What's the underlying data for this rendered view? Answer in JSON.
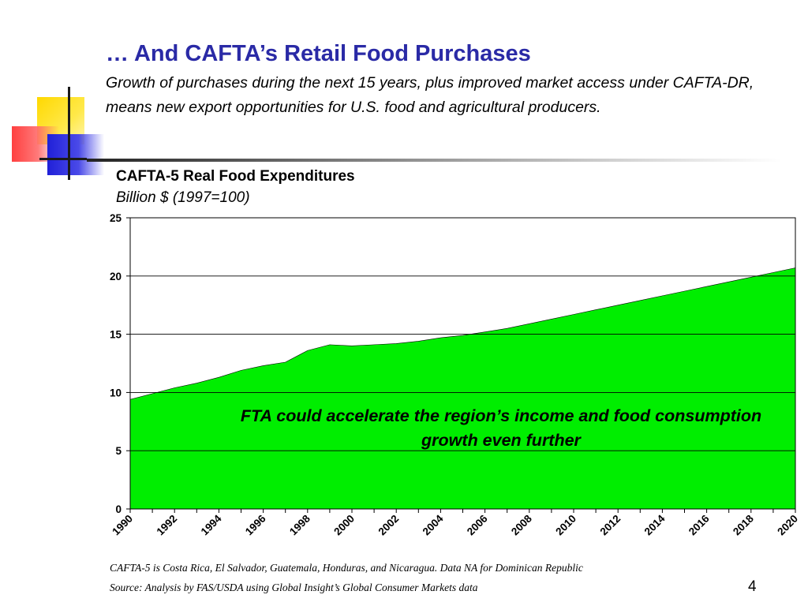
{
  "slide": {
    "title": "… And CAFTA’s Retail Food Purchases",
    "subtitle": "Growth of purchases during the next 15 years, plus improved market access under CAFTA-DR, means new export opportunities for U.S. food and agricultural producers.",
    "footnote_1": "CAFTA-5 is Costa Rica, El Salvador, Guatemala, Honduras, and Nicaragua.  Data NA for Dominican Republic",
    "footnote_2": "Source:  Analysis by FAS/USDA using Global Insight’s Global Consumer Markets data",
    "page_number": "4",
    "accent_colors": {
      "title": "#2a2aa6",
      "yellow": "#ffd800",
      "red": "#ff2a2a",
      "blue": "#2020d8"
    }
  },
  "chart_data": {
    "type": "area",
    "title": "CAFTA-5 Real Food Expenditures",
    "ylabel": "Billion $ (1997=100)",
    "xlabel": "",
    "x": [
      1990,
      1991,
      1992,
      1993,
      1994,
      1995,
      1996,
      1997,
      1998,
      1999,
      2000,
      2001,
      2002,
      2003,
      2004,
      2005,
      2006,
      2007,
      2008,
      2009,
      2010,
      2011,
      2012,
      2013,
      2014,
      2015,
      2016,
      2017,
      2018,
      2019,
      2020
    ],
    "series": [
      {
        "values": [
          9.4,
          9.9,
          10.4,
          10.8,
          11.3,
          11.9,
          12.3,
          12.6,
          13.6,
          14.1,
          14.0,
          14.1,
          14.2,
          14.4,
          14.7,
          14.9,
          15.2,
          15.5,
          15.9,
          16.3,
          16.7,
          17.1,
          17.5,
          17.9,
          18.3,
          18.7,
          19.1,
          19.5,
          19.9,
          20.3,
          20.7
        ],
        "color": "#00ee00"
      }
    ],
    "xticks": [
      "1990",
      "1992",
      "1994",
      "1996",
      "1998",
      "2000",
      "2002",
      "2004",
      "2006",
      "2008",
      "2010",
      "2012",
      "2014",
      "2016",
      "2018",
      "2020"
    ],
    "yticks": [
      "0",
      "5",
      "10",
      "15",
      "20",
      "25"
    ],
    "ylim": [
      0,
      25
    ],
    "xlim": [
      1990,
      2020
    ],
    "grid": true,
    "annotation": "FTA could accelerate the region’s income and food consumption growth even further"
  }
}
